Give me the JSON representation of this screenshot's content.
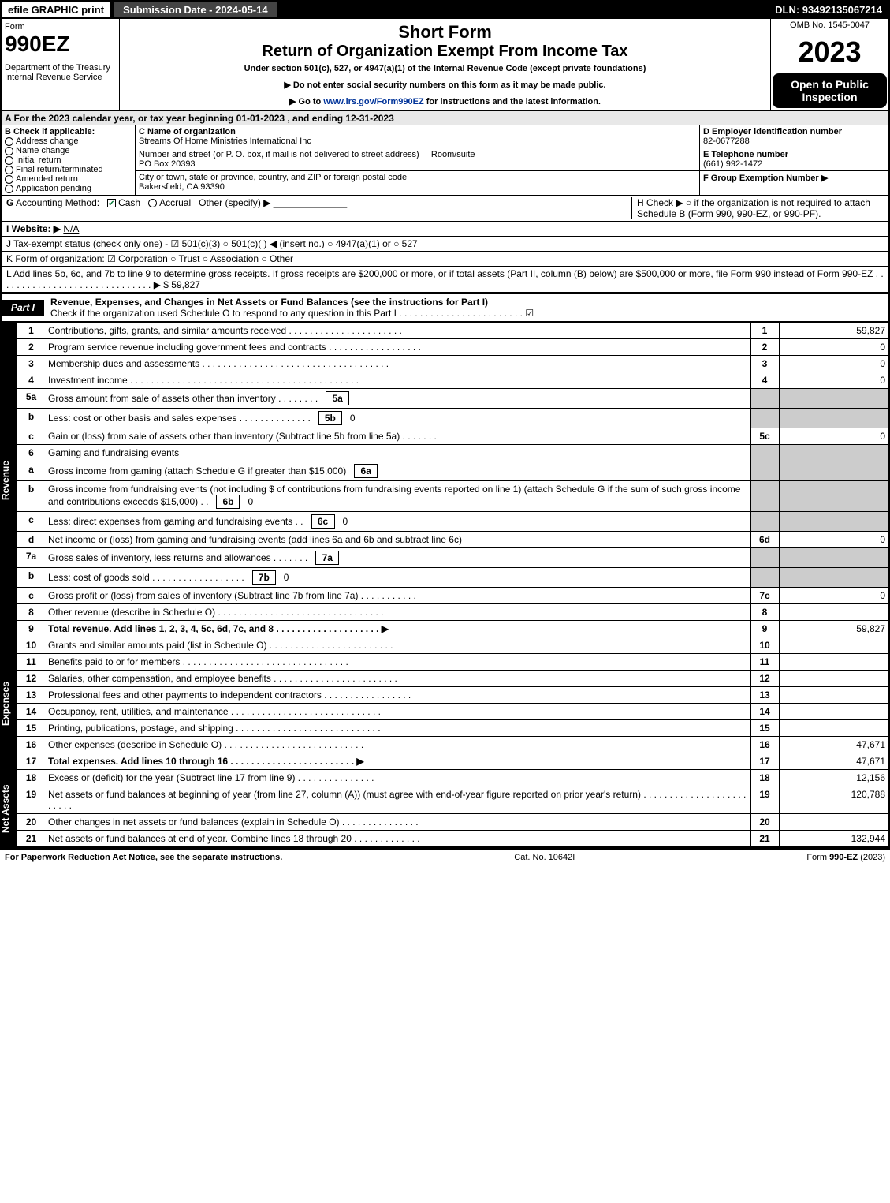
{
  "topbar": {
    "efile": "efile GRAPHIC print",
    "submission": "Submission Date - 2024-05-14",
    "dln": "DLN: 93492135067214"
  },
  "header": {
    "form_label": "Form",
    "form_num": "990EZ",
    "dept": "Department of the Treasury\nInternal Revenue Service",
    "short": "Short Form",
    "title": "Return of Organization Exempt From Income Tax",
    "sub": "Under section 501(c), 527, or 4947(a)(1) of the Internal Revenue Code (except private foundations)",
    "bullet1": "▶ Do not enter social security numbers on this form as it may be made public.",
    "bullet2": "▶ Go to www.irs.gov/Form990EZ for instructions and the latest information.",
    "omb": "OMB No. 1545-0047",
    "year": "2023",
    "open": "Open to Public Inspection"
  },
  "lineA": "A  For the 2023 calendar year, or tax year beginning 01-01-2023 , and ending 12-31-2023",
  "boxB": {
    "title": "B  Check if applicable:",
    "items": [
      "Address change",
      "Name change",
      "Initial return",
      "Final return/terminated",
      "Amended return",
      "Application pending"
    ]
  },
  "boxC": {
    "name_label": "C Name of organization",
    "name": "Streams Of Home Ministries International Inc",
    "street_label": "Number and street (or P. O. box, if mail is not delivered to street address)",
    "street": "PO Box 20393",
    "room_label": "Room/suite",
    "city_label": "City or town, state or province, country, and ZIP or foreign postal code",
    "city": "Bakersfield, CA  93390"
  },
  "boxD": {
    "label": "D Employer identification number",
    "value": "82-0677288"
  },
  "boxE": {
    "label": "E Telephone number",
    "value": "(661) 992-1472"
  },
  "boxF": {
    "label": "F Group Exemption Number  ▶",
    "value": ""
  },
  "lineG": "G Accounting Method:   ☑ Cash   ○ Accrual   Other (specify) ▶",
  "lineH": "H   Check ▶  ○  if the organization is not required to attach Schedule B (Form 990, 990-EZ, or 990-PF).",
  "lineI": "I Website: ▶ N/A",
  "lineJ": "J Tax-exempt status (check only one) - ☑ 501(c)(3)  ○  501(c)(  ) ◀ (insert no.)  ○  4947(a)(1) or  ○  527",
  "lineK": "K Form of organization:   ☑ Corporation   ○ Trust   ○ Association   ○ Other",
  "lineL": "L Add lines 5b, 6c, and 7b to line 9 to determine gross receipts. If gross receipts are $200,000 or more, or if total assets (Part II, column (B) below) are $500,000 or more, file Form 990 instead of Form 990-EZ  . . . . . . . . . . . . . . . . . . . . . . . . . . . . . .  ▶ $ 59,827",
  "part1": {
    "tab": "Part I",
    "title": "Revenue, Expenses, and Changes in Net Assets or Fund Balances (see the instructions for Part I)",
    "check": "Check if the organization used Schedule O to respond to any question in this Part I . . . . . . . . . . . . . . . . . . . . . . . .  ☑"
  },
  "rows": [
    {
      "n": "1",
      "d": "Contributions, gifts, grants, and similar amounts received . . . . . . . . . . . . . . . . . . . . . .",
      "ln": "1",
      "a": "59,827"
    },
    {
      "n": "2",
      "d": "Program service revenue including government fees and contracts . . . . . . . . . . . . . . . . . .",
      "ln": "2",
      "a": "0"
    },
    {
      "n": "3",
      "d": "Membership dues and assessments . . . . . . . . . . . . . . . . . . . . . . . . . . . . . . . . . . . .",
      "ln": "3",
      "a": "0"
    },
    {
      "n": "4",
      "d": "Investment income . . . . . . . . . . . . . . . . . . . . . . . . . . . . . . . . . . . . . . . . . . . .",
      "ln": "4",
      "a": "0"
    },
    {
      "n": "5a",
      "d": "Gross amount from sale of assets other than inventory . . . . . . . .",
      "box": "5a",
      "boxv": "",
      "shade": true
    },
    {
      "n": "b",
      "d": "Less: cost or other basis and sales expenses . . . . . . . . . . . . . .",
      "box": "5b",
      "boxv": "0",
      "shade": true
    },
    {
      "n": "c",
      "d": "Gain or (loss) from sale of assets other than inventory (Subtract line 5b from line 5a) . . . . . . .",
      "ln": "5c",
      "a": "0"
    },
    {
      "n": "6",
      "d": "Gaming and fundraising events",
      "shade": true
    },
    {
      "n": "a",
      "d": "Gross income from gaming (attach Schedule G if greater than $15,000)",
      "box": "6a",
      "boxv": "",
      "shade": true
    },
    {
      "n": "b",
      "d": "Gross income from fundraising events (not including $                  of contributions from fundraising events reported on line 1) (attach Schedule G if the sum of such gross income and contributions exceeds $15,000)     . .",
      "box": "6b",
      "boxv": "0",
      "shade": true
    },
    {
      "n": "c",
      "d": "Less: direct expenses from gaming and fundraising events  . .",
      "box": "6c",
      "boxv": "0",
      "shade": true
    },
    {
      "n": "d",
      "d": "Net income or (loss) from gaming and fundraising events (add lines 6a and 6b and subtract line 6c)",
      "ln": "6d",
      "a": "0"
    },
    {
      "n": "7a",
      "d": "Gross sales of inventory, less returns and allowances . . . . . . .",
      "box": "7a",
      "boxv": "",
      "shade": true
    },
    {
      "n": "b",
      "d": "Less: cost of goods sold      . . . . . . . . . . . . . . . . . .",
      "box": "7b",
      "boxv": "0",
      "shade": true
    },
    {
      "n": "c",
      "d": "Gross profit or (loss) from sales of inventory (Subtract line 7b from line 7a) . . . . . . . . . . .",
      "ln": "7c",
      "a": "0"
    },
    {
      "n": "8",
      "d": "Other revenue (describe in Schedule O) . . . . . . . . . . . . . . . . . . . . . . . . . . . . . . . .",
      "ln": "8",
      "a": ""
    },
    {
      "n": "9",
      "d": "Total revenue. Add lines 1, 2, 3, 4, 5c, 6d, 7c, and 8  . . . . . . . . . . . . . . . . . . . .  ▶",
      "ln": "9",
      "a": "59,827",
      "bold": true
    }
  ],
  "exp_rows": [
    {
      "n": "10",
      "d": "Grants and similar amounts paid (list in Schedule O) . . . . . . . . . . . . . . . . . . . . . . . .",
      "ln": "10",
      "a": ""
    },
    {
      "n": "11",
      "d": "Benefits paid to or for members      . . . . . . . . . . . . . . . . . . . . . . . . . . . . . . . .",
      "ln": "11",
      "a": ""
    },
    {
      "n": "12",
      "d": "Salaries, other compensation, and employee benefits . . . . . . . . . . . . . . . . . . . . . . . .",
      "ln": "12",
      "a": ""
    },
    {
      "n": "13",
      "d": "Professional fees and other payments to independent contractors . . . . . . . . . . . . . . . . .",
      "ln": "13",
      "a": ""
    },
    {
      "n": "14",
      "d": "Occupancy, rent, utilities, and maintenance . . . . . . . . . . . . . . . . . . . . . . . . . . . . .",
      "ln": "14",
      "a": ""
    },
    {
      "n": "15",
      "d": "Printing, publications, postage, and shipping . . . . . . . . . . . . . . . . . . . . . . . . . . . .",
      "ln": "15",
      "a": ""
    },
    {
      "n": "16",
      "d": "Other expenses (describe in Schedule O)      . . . . . . . . . . . . . . . . . . . . . . . . . . .",
      "ln": "16",
      "a": "47,671"
    },
    {
      "n": "17",
      "d": "Total expenses. Add lines 10 through 16     . . . . . . . . . . . . . . . . . . . . . . . .  ▶",
      "ln": "17",
      "a": "47,671",
      "bold": true
    }
  ],
  "na_rows": [
    {
      "n": "18",
      "d": "Excess or (deficit) for the year (Subtract line 17 from line 9)       . . . . . . . . . . . . . . .",
      "ln": "18",
      "a": "12,156"
    },
    {
      "n": "19",
      "d": "Net assets or fund balances at beginning of year (from line 27, column (A)) (must agree with end-of-year figure reported on prior year's return) . . . . . . . . . . . . . . . . . . . . . . . . .",
      "ln": "19",
      "a": "120,788"
    },
    {
      "n": "20",
      "d": "Other changes in net assets or fund balances (explain in Schedule O) . . . . . . . . . . . . . . .",
      "ln": "20",
      "a": ""
    },
    {
      "n": "21",
      "d": "Net assets or fund balances at end of year. Combine lines 18 through 20 . . . . . . . . . . . . .",
      "ln": "21",
      "a": "132,944"
    }
  ],
  "side_labels": {
    "rev": "Revenue",
    "exp": "Expenses",
    "na": "Net Assets"
  },
  "footer": {
    "left": "For Paperwork Reduction Act Notice, see the separate instructions.",
    "mid": "Cat. No. 10642I",
    "right": "Form 990-EZ (2023)"
  }
}
